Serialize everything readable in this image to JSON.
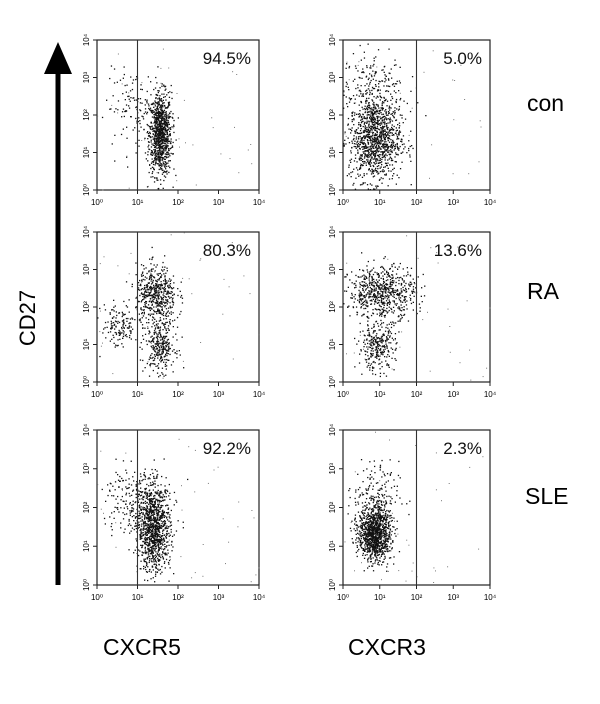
{
  "figure": {
    "y_axis_label": "CD27",
    "column_labels": [
      "CXCR5",
      "CXCR3"
    ],
    "row_labels": [
      "con",
      "RA",
      "SLE"
    ],
    "colors": {
      "dots": "#111111",
      "axes": "#222222",
      "gate": "#333333",
      "background": "#ffffff"
    }
  },
  "chart_data": [
    {
      "type": "scatter",
      "row": "con",
      "marker": "CXCR5",
      "gate_percent": "94.5%",
      "xscale": "log",
      "yscale": "log",
      "xlim": [
        1,
        10000
      ],
      "ylim": [
        1,
        10000
      ],
      "x_ticks": [
        "10⁰",
        "10¹",
        "10²",
        "10³",
        "10⁴"
      ],
      "y_ticks": [
        "10⁰",
        "10¹",
        "10²",
        "10³",
        "10⁴"
      ],
      "gate_x": 10
    },
    {
      "type": "scatter",
      "row": "con",
      "marker": "CXCR3",
      "gate_percent": "5.0%",
      "xscale": "log",
      "yscale": "log",
      "xlim": [
        1,
        10000
      ],
      "ylim": [
        1,
        10000
      ],
      "x_ticks": [
        "10⁰",
        "10¹",
        "10²",
        "10³",
        "10⁴"
      ],
      "y_ticks": [
        "10⁰",
        "10¹",
        "10²",
        "10³",
        "10⁴"
      ],
      "gate_x": 100
    },
    {
      "type": "scatter",
      "row": "RA",
      "marker": "CXCR5",
      "gate_percent": "80.3%",
      "xscale": "log",
      "yscale": "log",
      "xlim": [
        1,
        10000
      ],
      "ylim": [
        1,
        10000
      ],
      "x_ticks": [
        "10⁰",
        "10¹",
        "10²",
        "10³",
        "10⁴"
      ],
      "y_ticks": [
        "10⁰",
        "10¹",
        "10²",
        "10³",
        "10⁴"
      ],
      "gate_x": 10
    },
    {
      "type": "scatter",
      "row": "RA",
      "marker": "CXCR3",
      "gate_percent": "13.6%",
      "xscale": "log",
      "yscale": "log",
      "xlim": [
        1,
        10000
      ],
      "ylim": [
        1,
        10000
      ],
      "x_ticks": [
        "10⁰",
        "10¹",
        "10²",
        "10³",
        "10⁴"
      ],
      "y_ticks": [
        "10⁰",
        "10¹",
        "10²",
        "10³",
        "10⁴"
      ],
      "gate_x": 100
    },
    {
      "type": "scatter",
      "row": "SLE",
      "marker": "CXCR5",
      "gate_percent": "92.2%",
      "xscale": "log",
      "yscale": "log",
      "xlim": [
        1,
        10000
      ],
      "ylim": [
        1,
        10000
      ],
      "x_ticks": [
        "10⁰",
        "10¹",
        "10²",
        "10³",
        "10⁴"
      ],
      "y_ticks": [
        "10⁰",
        "10¹",
        "10²",
        "10³",
        "10⁴"
      ],
      "gate_x": 10
    },
    {
      "type": "scatter",
      "row": "SLE",
      "marker": "CXCR3",
      "gate_percent": "2.3%",
      "xscale": "log",
      "yscale": "log",
      "xlim": [
        1,
        10000
      ],
      "ylim": [
        1,
        10000
      ],
      "x_ticks": [
        "10⁰",
        "10¹",
        "10²",
        "10³",
        "10⁴"
      ],
      "y_ticks": [
        "10⁰",
        "10¹",
        "10²",
        "10³",
        "10⁴"
      ],
      "gate_x": 100
    }
  ]
}
